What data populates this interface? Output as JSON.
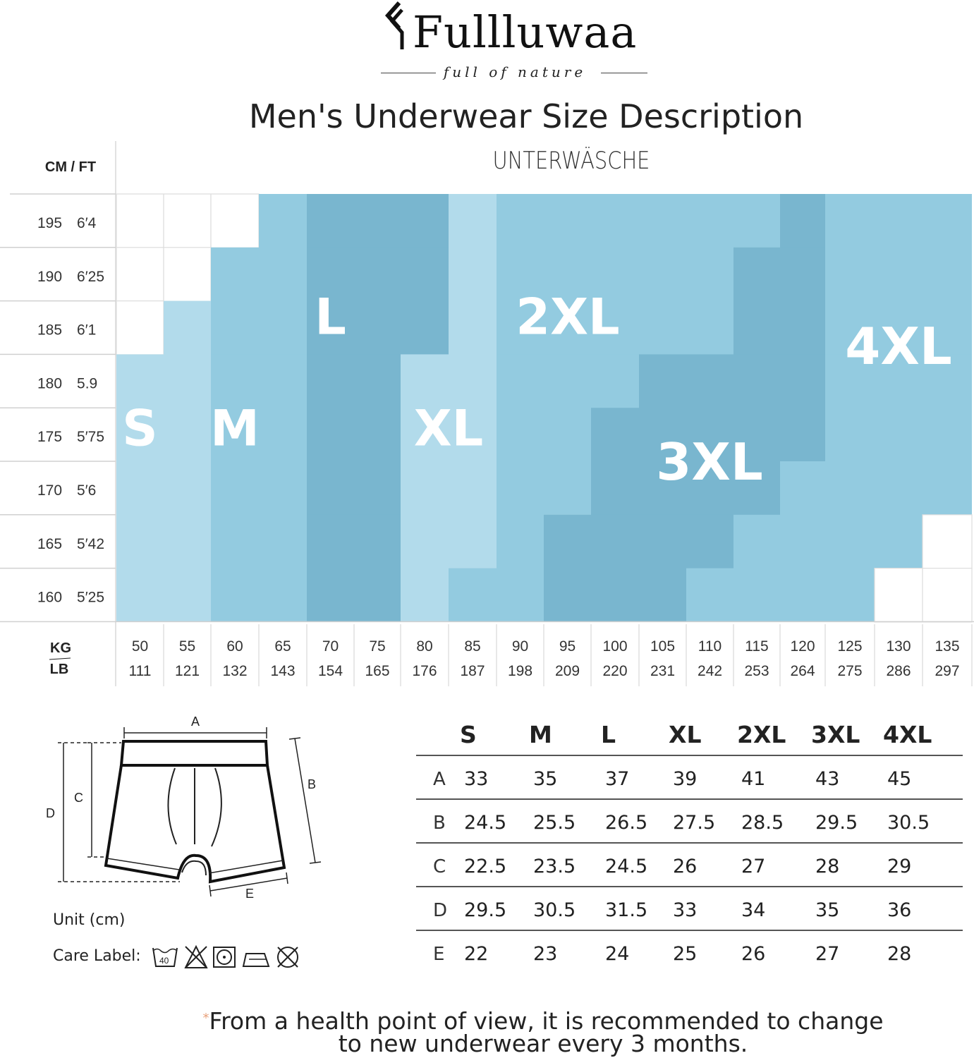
{
  "brand": {
    "name": "Fullluwaa",
    "tagline": "full of nature"
  },
  "title": "Men's Underwear Size Description",
  "subtitle": "UNTERWÄSCHE",
  "grid_header": "CM / FT",
  "weight_header": {
    "kg": "KG",
    "lb": "LB"
  },
  "colors": {
    "light": "#b2dbeb",
    "mid": "#93cbe0",
    "dark": "#79b6cf",
    "white": "#ffffff",
    "grid_line": "#dddddd"
  },
  "chart_data": {
    "type": "heatmap",
    "title": "Men's Underwear Size Description",
    "heights": [
      {
        "cm": "195",
        "ft": "6′4"
      },
      {
        "cm": "190",
        "ft": "6′25"
      },
      {
        "cm": "185",
        "ft": "6′1"
      },
      {
        "cm": "180",
        "ft": "5.9"
      },
      {
        "cm": "175",
        "ft": "5′75"
      },
      {
        "cm": "170",
        "ft": "5′6"
      },
      {
        "cm": "165",
        "ft": "5′42"
      },
      {
        "cm": "160",
        "ft": "5′25"
      }
    ],
    "weights": [
      {
        "kg": "50",
        "lb": "111"
      },
      {
        "kg": "55",
        "lb": "121"
      },
      {
        "kg": "60",
        "lb": "132"
      },
      {
        "kg": "65",
        "lb": "143"
      },
      {
        "kg": "70",
        "lb": "154"
      },
      {
        "kg": "75",
        "lb": "165"
      },
      {
        "kg": "80",
        "lb": "176"
      },
      {
        "kg": "85",
        "lb": "187"
      },
      {
        "kg": "90",
        "lb": "198"
      },
      {
        "kg": "95",
        "lb": "209"
      },
      {
        "kg": "100",
        "lb": "220"
      },
      {
        "kg": "105",
        "lb": "231"
      },
      {
        "kg": "110",
        "lb": "242"
      },
      {
        "kg": "115",
        "lb": "253"
      },
      {
        "kg": "120",
        "lb": "264"
      },
      {
        "kg": "125",
        "lb": "275"
      },
      {
        "kg": "130",
        "lb": "286"
      },
      {
        "kg": "135",
        "lb": "297"
      }
    ],
    "sizes": [
      "S",
      "M",
      "L",
      "XL",
      "2XL",
      "3XL",
      "4XL"
    ],
    "size_cells": [
      [
        null,
        null,
        null,
        "M",
        "L",
        "L",
        "L",
        "XL",
        "2XL",
        "2XL",
        "2XL",
        "2XL",
        "2XL",
        "2XL",
        "3XL",
        "4XL",
        "4XL",
        "4XL"
      ],
      [
        null,
        null,
        "M",
        "M",
        "L",
        "L",
        "L",
        "XL",
        "2XL",
        "2XL",
        "2XL",
        "2XL",
        "2XL",
        "3XL",
        "3XL",
        "4XL",
        "4XL",
        "4XL"
      ],
      [
        null,
        "S",
        "M",
        "M",
        "L",
        "L",
        "L",
        "XL",
        "2XL",
        "2XL",
        "2XL",
        "2XL",
        "2XL",
        "3XL",
        "3XL",
        "4XL",
        "4XL",
        "4XL"
      ],
      [
        "S",
        "S",
        "M",
        "M",
        "L",
        "L",
        "XL",
        "XL",
        "2XL",
        "2XL",
        "2XL",
        "3XL",
        "3XL",
        "3XL",
        "3XL",
        "4XL",
        "4XL",
        "4XL"
      ],
      [
        "S",
        "S",
        "M",
        "M",
        "L",
        "L",
        "XL",
        "XL",
        "2XL",
        "2XL",
        "3XL",
        "3XL",
        "3XL",
        "3XL",
        "3XL",
        "4XL",
        "4XL",
        "4XL"
      ],
      [
        "S",
        "S",
        "M",
        "M",
        "L",
        "L",
        "XL",
        "XL",
        "2XL",
        "2XL",
        "3XL",
        "3XL",
        "3XL",
        "3XL",
        "4XL",
        "4XL",
        "4XL",
        "4XL"
      ],
      [
        "S",
        "S",
        "M",
        "M",
        "L",
        "L",
        "XL",
        "XL",
        "2XL",
        "3XL",
        "3XL",
        "3XL",
        "3XL",
        "4XL",
        "4XL",
        "4XL",
        "4XL",
        null
      ],
      [
        "S",
        "S",
        "M",
        "M",
        "L",
        "L",
        "XL",
        "2XL",
        "2XL",
        "3XL",
        "3XL",
        "3XL",
        "4XL",
        "4XL",
        "4XL",
        "4XL",
        null,
        null
      ]
    ]
  },
  "diagram": {
    "labels": {
      "a": "A",
      "b": "B",
      "c": "C",
      "d": "D",
      "e": "E"
    },
    "unit": "Unit (cm)",
    "care_label": "Care Label:",
    "care_icons": [
      "wash-40-icon",
      "no-bleach-icon",
      "tumble-dry-icon",
      "iron-icon",
      "no-dry-clean-icon"
    ],
    "wash_temp": "40"
  },
  "measurements": {
    "sizes": [
      "S",
      "M",
      "L",
      "XL",
      "2XL",
      "3XL",
      "4XL"
    ],
    "rows": [
      {
        "label": "A",
        "values": [
          "33",
          "35",
          "37",
          "39",
          "41",
          "43",
          "45"
        ]
      },
      {
        "label": "B",
        "values": [
          "24.5",
          "25.5",
          "26.5",
          "27.5",
          "28.5",
          "29.5",
          "30.5"
        ]
      },
      {
        "label": "C",
        "values": [
          "22.5",
          "23.5",
          "24.5",
          "26",
          "27",
          "28",
          "29"
        ]
      },
      {
        "label": "D",
        "values": [
          "29.5",
          "30.5",
          "31.5",
          "33",
          "34",
          "35",
          "36"
        ]
      },
      {
        "label": "E",
        "values": [
          "22",
          "23",
          "24",
          "25",
          "26",
          "27",
          "28"
        ]
      }
    ]
  },
  "note": {
    "star": "*",
    "line1": "From a health point of view, it is recommended to change",
    "line2": "to new underwear every 3 months."
  }
}
